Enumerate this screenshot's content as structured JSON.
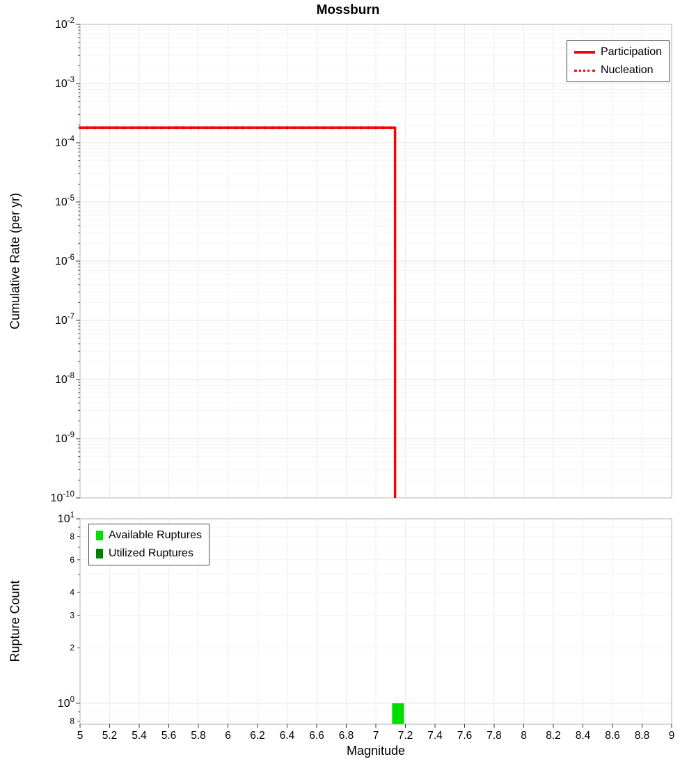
{
  "title": "Mossburn",
  "x_axis": {
    "label": "Magnitude",
    "min": 5,
    "max": 9,
    "tick_step": 0.2,
    "tick_labels": [
      "5",
      "5.2",
      "5.4",
      "5.6",
      "5.8",
      "6",
      "6.2",
      "6.4",
      "6.6",
      "6.8",
      "7",
      "7.2",
      "7.4",
      "7.6",
      "7.8",
      "8",
      "8.2",
      "8.4",
      "8.6",
      "8.8",
      "9"
    ]
  },
  "chart_data": [
    {
      "type": "line",
      "title": "Mossburn",
      "ylabel": "Cumulative Rate (per yr)",
      "yscale": "log",
      "ylim": [
        1e-10,
        0.01
      ],
      "y_tick_exponents": [
        -2,
        -3,
        -4,
        -5,
        -6,
        -7,
        -8,
        -9,
        -10
      ],
      "grid": true,
      "legend_position": "top-right",
      "series": [
        {
          "name": "Participation",
          "color": "#ff0000",
          "line_style": "solid",
          "marker": "circle",
          "marker_step": 0.05,
          "x": [
            5.0,
            7.13,
            7.13
          ],
          "y": [
            0.00018,
            0.00018,
            1e-10
          ],
          "description": "flat at ~1.8e-4 /yr from M5 to M7.13, then vertical drop to below 1e-10"
        },
        {
          "name": "Nucleation",
          "color": "#ff0000",
          "line_style": "dotted",
          "marker": "none",
          "x": [
            5.0,
            7.13,
            7.13
          ],
          "y": [
            0.00018,
            0.00018,
            1e-10
          ],
          "description": "identical to Participation, drawn dotted on top"
        }
      ]
    },
    {
      "type": "bar",
      "ylabel": "Rupture Count",
      "yscale": "log",
      "ylim": [
        0.77,
        10
      ],
      "major_ticks": [
        {
          "value": 10,
          "exponent": 1
        },
        {
          "value": 1,
          "exponent": 0
        }
      ],
      "minor_tick_labels": [
        {
          "value": 8,
          "label": "8"
        },
        {
          "value": 6,
          "label": "6"
        },
        {
          "value": 4,
          "label": "4"
        },
        {
          "value": 3,
          "label": "3"
        },
        {
          "value": 2,
          "label": "2"
        },
        {
          "value": 0.8,
          "label": "8"
        }
      ],
      "grid": true,
      "legend_position": "top-left",
      "bars": [
        {
          "magnitude": 7.15,
          "count": 1,
          "width": 0.08,
          "color": "#00dd00",
          "series": "Available Ruptures"
        }
      ],
      "legend": [
        {
          "label": "Available Ruptures",
          "color": "#00dd00"
        },
        {
          "label": "Utilized Ruptures",
          "color": "#008000"
        }
      ]
    }
  ]
}
